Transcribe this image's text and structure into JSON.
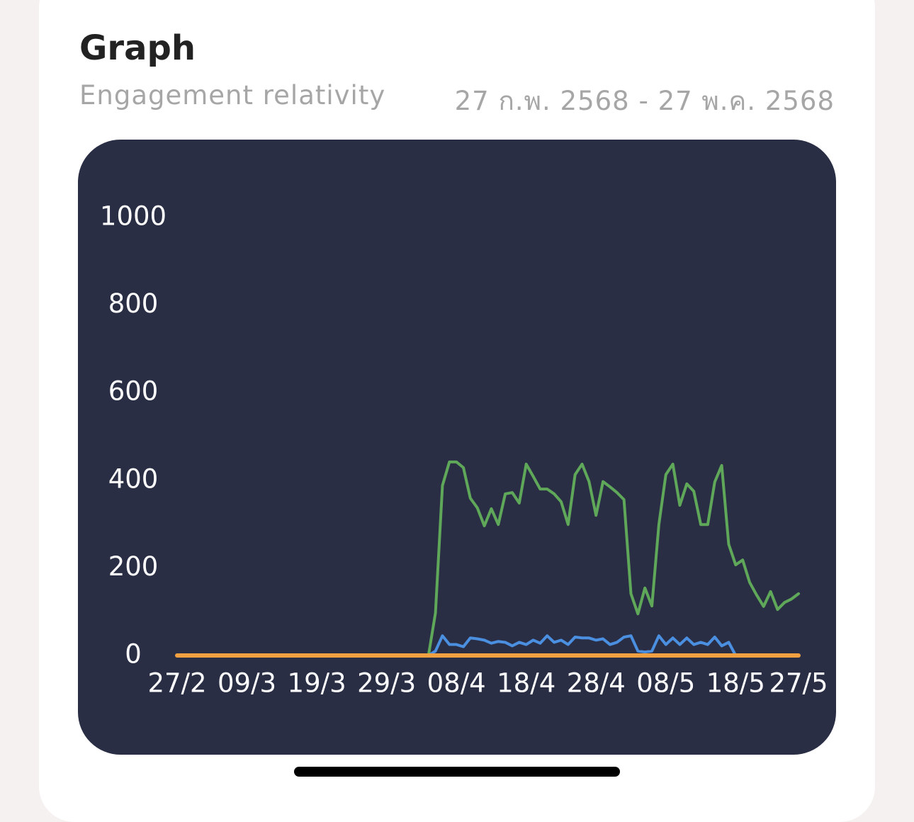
{
  "header": {
    "title": "Graph",
    "subtitle": "Engagement relativity",
    "date_range": "27 ก.พ. 2568 - 27 พ.ค. 2568"
  },
  "chart_data": {
    "type": "line",
    "categories": [
      "27/2",
      null,
      null,
      null,
      null,
      null,
      null,
      null,
      null,
      null,
      "09/3",
      null,
      null,
      null,
      null,
      null,
      null,
      null,
      null,
      null,
      "19/3",
      null,
      null,
      null,
      null,
      null,
      null,
      null,
      null,
      null,
      "29/3",
      null,
      null,
      null,
      null,
      null,
      null,
      null,
      null,
      null,
      "08/4",
      null,
      null,
      null,
      null,
      null,
      null,
      null,
      null,
      null,
      "18/4",
      null,
      null,
      null,
      null,
      null,
      null,
      null,
      null,
      null,
      "28/4",
      null,
      null,
      null,
      null,
      null,
      null,
      null,
      null,
      null,
      "08/5",
      null,
      null,
      null,
      null,
      null,
      null,
      null,
      null,
      null,
      "18/5",
      null,
      null,
      null,
      null,
      null,
      null,
      null,
      null,
      "27/5"
    ],
    "series": [
      {
        "color": "#5fa85a",
        "values": [
          0,
          0,
          0,
          0,
          0,
          0,
          0,
          0,
          0,
          0,
          0,
          0,
          0,
          0,
          0,
          0,
          0,
          0,
          0,
          0,
          0,
          0,
          0,
          0,
          0,
          0,
          0,
          0,
          0,
          0,
          0,
          0,
          0,
          0,
          0,
          0,
          0,
          97,
          388,
          442,
          442,
          429,
          359,
          337,
          296,
          335,
          299,
          369,
          372,
          348,
          437,
          409,
          380,
          380,
          369,
          351,
          299,
          413,
          437,
          397,
          320,
          397,
          385,
          372,
          356,
          141,
          95,
          154,
          113,
          299,
          413,
          437,
          343,
          392,
          375,
          299,
          299,
          396,
          434,
          254,
          207,
          218,
          167,
          138,
          112,
          146,
          105,
          121,
          129,
          141
        ]
      },
      {
        "color": "#4a8fe0",
        "values": [
          0,
          0,
          0,
          0,
          0,
          0,
          0,
          0,
          0,
          0,
          0,
          0,
          0,
          0,
          0,
          0,
          0,
          0,
          0,
          0,
          0,
          0,
          0,
          0,
          0,
          0,
          0,
          0,
          0,
          0,
          0,
          0,
          0,
          0,
          0,
          0,
          0,
          10,
          45,
          25,
          25,
          20,
          40,
          38,
          35,
          28,
          32,
          30,
          22,
          30,
          25,
          35,
          28,
          45,
          30,
          35,
          25,
          42,
          40,
          40,
          35,
          38,
          25,
          30,
          42,
          45,
          10,
          8,
          10,
          45,
          25,
          40,
          25,
          40,
          25,
          30,
          25,
          42,
          22,
          30,
          0,
          0,
          0,
          0,
          0,
          0,
          0,
          0,
          0,
          0
        ]
      },
      {
        "color": "#f0a040",
        "values": [
          0,
          0,
          0,
          0,
          0,
          0,
          0,
          0,
          0,
          0,
          0,
          0,
          0,
          0,
          0,
          0,
          0,
          0,
          0,
          0,
          0,
          0,
          0,
          0,
          0,
          0,
          0,
          0,
          0,
          0,
          0,
          0,
          0,
          0,
          0,
          0,
          0,
          0,
          0,
          0,
          0,
          0,
          0,
          0,
          0,
          0,
          0,
          0,
          0,
          0,
          0,
          0,
          0,
          0,
          0,
          0,
          0,
          0,
          0,
          0,
          0,
          0,
          0,
          0,
          0,
          0,
          0,
          0,
          0,
          0,
          0,
          0,
          0,
          0,
          0,
          0,
          0,
          0,
          0,
          0,
          0,
          0,
          0,
          0,
          0,
          0,
          0,
          0,
          0,
          0
        ]
      }
    ],
    "ylim": [
      0,
      1000
    ],
    "yticks": [
      0,
      200,
      400,
      600,
      800,
      1000
    ],
    "grid": false
  }
}
